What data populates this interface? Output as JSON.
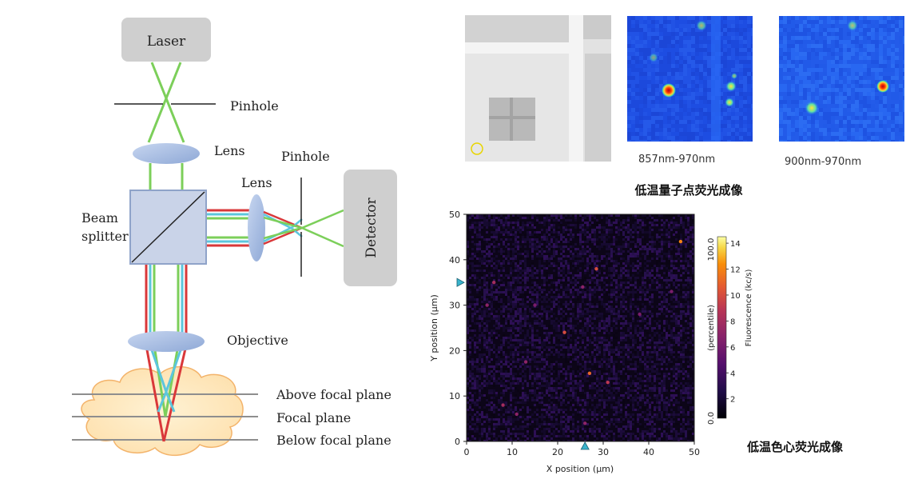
{
  "diagram": {
    "laser": "Laser",
    "pinhole_top": "Pinhole",
    "lens_top": "Lens",
    "beam_splitter_line1": "Beam",
    "beam_splitter_line2": "splitter",
    "lens_right": "Lens",
    "pinhole_right": "Pinhole",
    "detector": "Detector",
    "objective": "Objective",
    "above_focal_plane": "Above focal plane",
    "focal_plane": "Focal plane",
    "below_focal_plane": "Below focal plane",
    "colors": {
      "laser_beam": "#7ccf5a",
      "red_beam": "#d9383a",
      "cyan_beam": "#5cc6dc",
      "box_fill": "#cfcfcf",
      "splitter_fill": "#c9d3e8",
      "lens_fill": "#9fb6dc",
      "sample_fill": "#fde3b3",
      "sample_edge": "#f3b36a"
    }
  },
  "qd_images": {
    "label_857": "857nm-970nm",
    "label_900": "900nm-970nm",
    "caption": "低温量子点荧光成像"
  },
  "nv_scan": {
    "caption": "低温色心荧光成像",
    "colorbar_top_label": "100.0",
    "colorbar_bottom_label": "0.0",
    "colorbar_side_label": "(percentile)",
    "colorbar_colormap": "inferno"
  },
  "chart_data": {
    "type": "heatmap",
    "title": "",
    "xlabel": "X position (μm)",
    "ylabel": "Y position (μm)",
    "xlim": [
      0,
      50
    ],
    "ylim": [
      0,
      50
    ],
    "xticks": [
      "0",
      "10",
      "20",
      "30",
      "40",
      "50"
    ],
    "yticks": [
      "0",
      "10",
      "20",
      "30",
      "40",
      "50"
    ],
    "colorbar": {
      "label": "Fluorescence (kc/s)",
      "ticks": [
        "2",
        "4",
        "6",
        "8",
        "10",
        "12",
        "14"
      ],
      "range": [
        0.5,
        14.5
      ]
    },
    "marker_x": 26,
    "marker_y": 35,
    "bright_spots": [
      {
        "x": 47,
        "y": 44,
        "value": 12
      },
      {
        "x": 6,
        "y": 35,
        "value": 8
      },
      {
        "x": 28.5,
        "y": 38,
        "value": 10
      },
      {
        "x": 25.5,
        "y": 34,
        "value": 7
      },
      {
        "x": 4.5,
        "y": 30,
        "value": 7
      },
      {
        "x": 21.5,
        "y": 24,
        "value": 10
      },
      {
        "x": 27,
        "y": 15,
        "value": 11
      },
      {
        "x": 31,
        "y": 13,
        "value": 9
      },
      {
        "x": 13,
        "y": 17.5,
        "value": 7
      },
      {
        "x": 26,
        "y": 4,
        "value": 7
      },
      {
        "x": 8,
        "y": 8,
        "value": 8
      },
      {
        "x": 11,
        "y": 6,
        "value": 7
      },
      {
        "x": 45,
        "y": 33,
        "value": 6
      },
      {
        "x": 15,
        "y": 30,
        "value": 6
      },
      {
        "x": 38,
        "y": 28,
        "value": 6
      }
    ]
  }
}
